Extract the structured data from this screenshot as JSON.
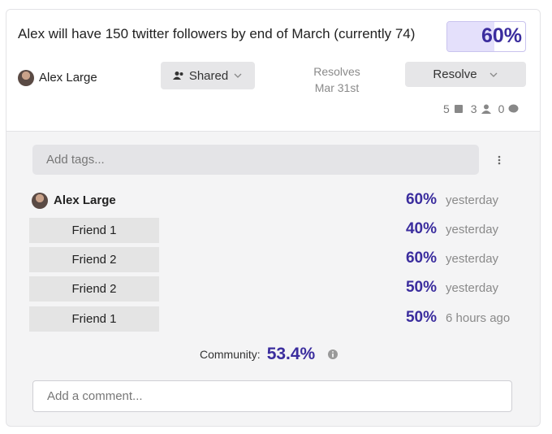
{
  "question": {
    "title": "Alex will have 150 twitter followers by end of March (currently 74)",
    "prediction": {
      "value": 60,
      "label": "60%"
    },
    "author": "Alex Large",
    "share_button": "Shared",
    "resolves_label": "Resolves",
    "resolves_date": "Mar 31st",
    "resolve_button": "Resolve",
    "counts": [
      "5",
      "3",
      "0"
    ]
  },
  "tags_placeholder": "Add tags...",
  "forecasts": [
    {
      "name": "Alex Large",
      "value": "60%",
      "time": "yesterday"
    },
    {
      "name": "Friend 1",
      "value": "40%",
      "time": "yesterday"
    },
    {
      "name": "Friend 2",
      "value": "60%",
      "time": "yesterday"
    },
    {
      "name": "Friend 2",
      "value": "50%",
      "time": "yesterday"
    },
    {
      "name": "Friend 1",
      "value": "50%",
      "time": "6 hours ago"
    }
  ],
  "community": {
    "label": "Community:",
    "value": "53.4%"
  },
  "comment_placeholder": "Add a comment..."
}
